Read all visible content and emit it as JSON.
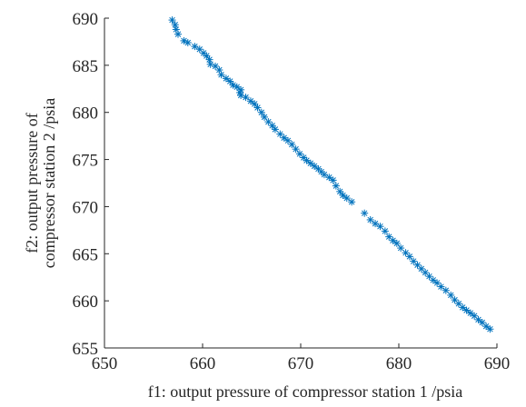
{
  "chart_data": {
    "type": "scatter",
    "xlabel": "f1: output pressure of compressor station 1 /psia",
    "ylabel_lines": [
      "f2: output pressure of",
      "compressor station 2 /psia"
    ],
    "xlim": [
      650,
      690
    ],
    "ylim": [
      655,
      690
    ],
    "x_ticks": [
      650,
      660,
      670,
      680,
      690
    ],
    "y_ticks": [
      655,
      660,
      665,
      670,
      675,
      680,
      685,
      690
    ],
    "x_tick_labels": [
      "650",
      "660",
      "670",
      "680",
      "690"
    ],
    "y_tick_labels": [
      "655",
      "660",
      "665",
      "670",
      "675",
      "680",
      "685",
      "690"
    ],
    "grid": false,
    "box": false,
    "marker": "asterisk",
    "color": "#0072BD",
    "series": [
      {
        "points": [
          [
            656.9,
            689.8
          ],
          [
            657.2,
            689.3
          ],
          [
            657.3,
            688.8
          ],
          [
            657.5,
            688.3
          ],
          [
            658.1,
            687.6
          ],
          [
            658.5,
            687.4
          ],
          [
            659.2,
            687.0
          ],
          [
            659.7,
            686.7
          ],
          [
            660.1,
            686.3
          ],
          [
            660.4,
            686.0
          ],
          [
            660.7,
            685.6
          ],
          [
            660.8,
            685.1
          ],
          [
            661.3,
            684.9
          ],
          [
            661.7,
            684.5
          ],
          [
            661.9,
            684.0
          ],
          [
            662.4,
            683.6
          ],
          [
            662.8,
            683.3
          ],
          [
            663.1,
            682.9
          ],
          [
            663.5,
            682.7
          ],
          [
            663.9,
            682.4
          ],
          [
            663.8,
            682.1
          ],
          [
            663.9,
            681.8
          ],
          [
            664.4,
            681.6
          ],
          [
            664.9,
            681.2
          ],
          [
            665.3,
            680.9
          ],
          [
            665.6,
            680.5
          ],
          [
            666.0,
            680.0
          ],
          [
            666.3,
            679.5
          ],
          [
            666.7,
            679.0
          ],
          [
            667.1,
            678.6
          ],
          [
            667.4,
            678.2
          ],
          [
            667.9,
            677.7
          ],
          [
            668.3,
            677.3
          ],
          [
            668.7,
            677.0
          ],
          [
            669.1,
            676.6
          ],
          [
            669.5,
            676.1
          ],
          [
            669.9,
            675.6
          ],
          [
            670.3,
            675.2
          ],
          [
            670.6,
            674.9
          ],
          [
            671.0,
            674.6
          ],
          [
            671.4,
            674.3
          ],
          [
            671.8,
            674.0
          ],
          [
            672.1,
            673.7
          ],
          [
            672.4,
            673.4
          ],
          [
            672.9,
            673.1
          ],
          [
            673.3,
            672.8
          ],
          [
            673.6,
            672.2
          ],
          [
            674.0,
            671.6
          ],
          [
            674.3,
            671.2
          ],
          [
            674.7,
            670.9
          ],
          [
            675.2,
            670.5
          ],
          [
            676.5,
            669.3
          ],
          [
            677.1,
            668.6
          ],
          [
            677.6,
            668.2
          ],
          [
            678.1,
            667.9
          ],
          [
            678.6,
            667.4
          ],
          [
            679.0,
            666.8
          ],
          [
            679.4,
            666.4
          ],
          [
            679.8,
            666.1
          ],
          [
            680.2,
            665.6
          ],
          [
            680.7,
            665.1
          ],
          [
            681.1,
            664.7
          ],
          [
            681.5,
            664.2
          ],
          [
            681.9,
            663.8
          ],
          [
            682.3,
            663.4
          ],
          [
            682.7,
            663.0
          ],
          [
            683.1,
            662.6
          ],
          [
            683.5,
            662.2
          ],
          [
            683.9,
            661.9
          ],
          [
            684.3,
            661.5
          ],
          [
            684.8,
            661.1
          ],
          [
            685.3,
            660.6
          ],
          [
            685.7,
            660.1
          ],
          [
            686.1,
            659.7
          ],
          [
            686.5,
            659.3
          ],
          [
            686.9,
            659.0
          ],
          [
            687.3,
            658.7
          ],
          [
            687.7,
            658.4
          ],
          [
            688.1,
            658.0
          ],
          [
            688.5,
            657.7
          ],
          [
            688.9,
            657.3
          ],
          [
            689.3,
            657.0
          ]
        ]
      }
    ]
  }
}
